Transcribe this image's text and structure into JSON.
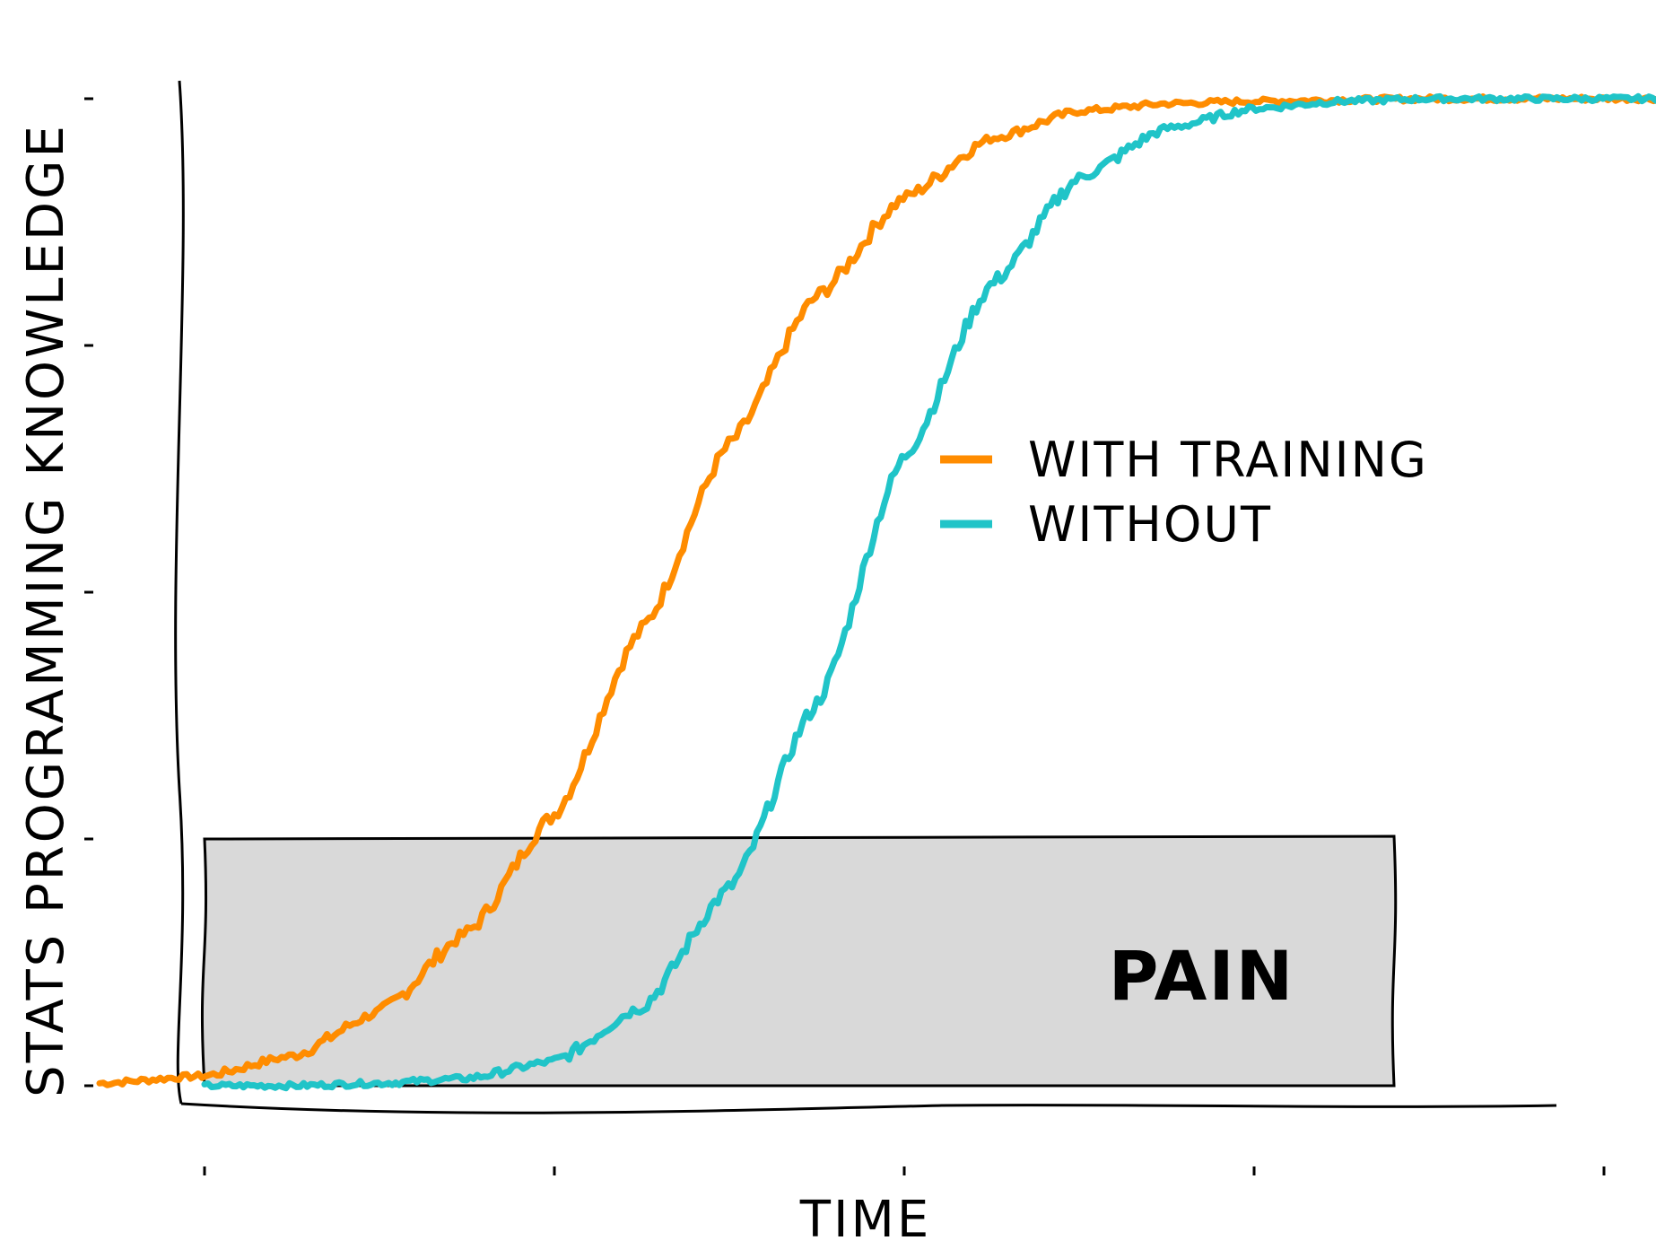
{
  "chart_data": {
    "type": "line",
    "style": "xkcd",
    "title": "",
    "xlabel": "TIME",
    "ylabel": "STATS PROGRAMMING KNOWLEDGE",
    "xlim": [
      0,
      4.25
    ],
    "ylim": [
      0,
      4
    ],
    "x_ticks": [
      0,
      1,
      2,
      3,
      4
    ],
    "y_ticks": [
      0,
      1,
      2,
      3,
      4
    ],
    "tick_labels_shown": false,
    "grid": false,
    "legend": {
      "position": "right",
      "entries": [
        "WITH TRAINING",
        "WITHOUT"
      ]
    },
    "series": [
      {
        "name": "WITH TRAINING",
        "color": "#ff8c00",
        "x": [
          -0.3,
          0.0,
          0.25,
          0.5,
          0.75,
          1.0,
          1.25,
          1.5,
          1.75,
          2.0,
          2.25,
          2.5,
          2.75,
          3.0,
          3.5,
          4.0,
          4.25
        ],
        "y": [
          0.01,
          0.04,
          0.12,
          0.3,
          0.62,
          1.1,
          1.85,
          2.6,
          3.2,
          3.6,
          3.84,
          3.95,
          3.98,
          3.99,
          4.0,
          4.0,
          4.0
        ]
      },
      {
        "name": "WITHOUT",
        "color": "#20c4c8",
        "x": [
          0.0,
          0.25,
          0.5,
          0.75,
          1.0,
          1.25,
          1.5,
          1.75,
          2.0,
          2.25,
          2.5,
          2.75,
          3.0,
          3.25,
          3.5,
          4.0,
          4.25
        ],
        "y": [
          0.0,
          0.0,
          0.01,
          0.03,
          0.1,
          0.32,
          0.8,
          1.55,
          2.55,
          3.25,
          3.68,
          3.88,
          3.96,
          3.99,
          4.0,
          4.0,
          4.0
        ]
      }
    ],
    "annotations": [
      {
        "text": "PAIN",
        "x_range": [
          0,
          3.4
        ],
        "y_range": [
          0,
          1
        ],
        "fill": "#d9d9d9"
      }
    ]
  }
}
